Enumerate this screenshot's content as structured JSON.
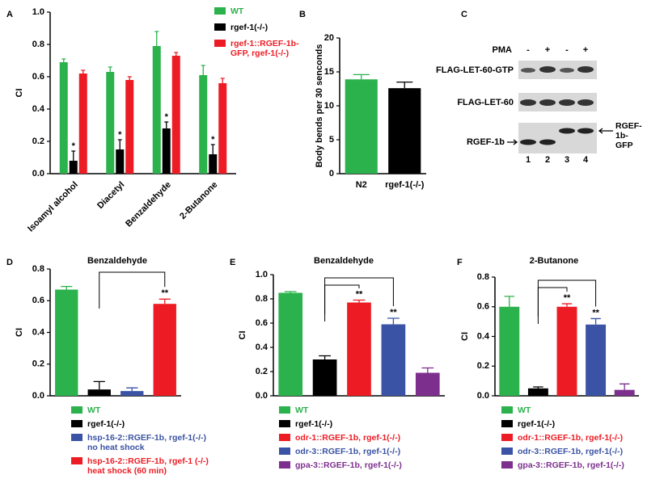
{
  "chart_data": [
    {
      "type": "bar",
      "label": "A",
      "ylabel": "CI",
      "categories": [
        "Isoamyl alcohol",
        "Diacetyl",
        "Benzaldehyde",
        "2-Butanone"
      ],
      "series": [
        {
          "name": "WT",
          "color": "#2bb24c",
          "values": [
            0.69,
            0.63,
            0.79,
            0.61
          ],
          "errors": [
            0.02,
            0.03,
            0.09,
            0.06
          ]
        },
        {
          "name": "rgef-1(-/-)",
          "color": "#000000",
          "values": [
            0.08,
            0.15,
            0.28,
            0.12
          ],
          "errors": [
            0.06,
            0.06,
            0.04,
            0.06
          ]
        },
        {
          "name": "rgef-1::RGEF-1b-\nGFP, rgef-1(-/-)",
          "color": "#ed1c24",
          "values": [
            0.62,
            0.58,
            0.73,
            0.56
          ],
          "errors": [
            0.02,
            0.02,
            0.02,
            0.03
          ]
        }
      ],
      "asterisks": [
        "*",
        "*",
        "*",
        "*"
      ],
      "ylim": [
        0,
        1
      ],
      "yticks": [
        {
          "value": 0,
          "label": "0.0"
        },
        0.2,
        0.4,
        0.6,
        0.8,
        {
          "value": 1,
          "label": "1.0"
        }
      ]
    },
    {
      "type": "bar",
      "label": "B",
      "ylabel": "Body bends per 30 senconds",
      "categories": [
        "N2",
        "rgef-1(-/-)"
      ],
      "values": [
        13.9,
        12.6
      ],
      "errors": [
        0.7,
        0.9
      ],
      "colors": [
        "#2bb24c",
        "#000000"
      ],
      "ylim": [
        0,
        20
      ],
      "yticks": [
        0,
        5,
        10,
        15,
        20
      ]
    },
    {
      "type": "bar",
      "label": "D",
      "title": "Benzaldehyde",
      "ylabel": "CI",
      "categories": [
        null,
        null,
        null,
        null
      ],
      "series": [
        {
          "name": "WT",
          "color": "#2bb24c",
          "values": [
            0.67,
            null,
            null,
            null
          ],
          "errors": [
            0.02,
            null,
            null,
            null
          ]
        },
        {
          "name": "rgef-1(-/-)",
          "color": "#000000",
          "values": [
            null,
            0.04,
            null,
            null
          ],
          "errors": [
            null,
            0.05,
            null,
            null
          ]
        },
        {
          "name": "hsp-16-2::RGEF-1b, rgef-1(-/-)\nno heat shock",
          "color": "#3a53a4",
          "values": [
            null,
            null,
            0.03,
            null
          ],
          "errors": [
            null,
            null,
            0.02,
            null
          ]
        },
        {
          "name": "hsp-16-2::RGEF-1b, rgef-1 (-/-)\nheat shock (60 min)",
          "color": "#ed1c24",
          "values": [
            null,
            null,
            null,
            0.58
          ],
          "errors": [
            null,
            null,
            null,
            0.03
          ]
        }
      ],
      "significance": [
        {
          "from": 1,
          "to": 3,
          "label": "**"
        }
      ],
      "ylim": [
        0,
        0.8
      ],
      "yticks": [
        {
          "value": 0,
          "label": "0.0"
        },
        0.2,
        0.4,
        0.6,
        0.8
      ]
    },
    {
      "type": "bar",
      "label": "E",
      "title": "Benzaldehyde",
      "ylabel": "CI",
      "categories": [
        null,
        null,
        null,
        null,
        null
      ],
      "series": [
        {
          "name": "WT",
          "color": "#2bb24c",
          "values": [
            0.85,
            null,
            null,
            null,
            null
          ],
          "errors": [
            0.01,
            null,
            null,
            null,
            null
          ]
        },
        {
          "name": "rgef-1(-/-)",
          "color": "#000000",
          "values": [
            null,
            0.3,
            null,
            null,
            null
          ],
          "errors": [
            null,
            0.03,
            null,
            null,
            null
          ]
        },
        {
          "name": "odr-1::RGEF-1b, rgef-1(-/-)",
          "color": "#ed1c24",
          "values": [
            null,
            null,
            0.77,
            null,
            null
          ],
          "errors": [
            null,
            null,
            0.02,
            null,
            null
          ]
        },
        {
          "name": "odr-3::RGEF-1b, rgef-1(-/-)",
          "color": "#3a53a4",
          "values": [
            null,
            null,
            null,
            0.59,
            null
          ],
          "errors": [
            null,
            null,
            null,
            0.05,
            null
          ]
        },
        {
          "name": "gpa-3::RGEF-1b, rgef-1(-/-)",
          "color": "#7d2f8e",
          "values": [
            null,
            null,
            null,
            null,
            0.19
          ],
          "errors": [
            null,
            null,
            null,
            null,
            0.04
          ]
        }
      ],
      "significance": [
        {
          "from": 1,
          "to": 2,
          "label": "**"
        },
        {
          "from": 1,
          "to": 3,
          "label": "**"
        }
      ],
      "ylim": [
        0,
        1
      ],
      "yticks": [
        {
          "value": 0,
          "label": "0.0"
        },
        0.2,
        0.4,
        0.6,
        0.8,
        {
          "value": 1,
          "label": "1.0"
        }
      ]
    },
    {
      "type": "bar",
      "label": "F",
      "title": "2-Butanone",
      "ylabel": "CI",
      "categories": [
        null,
        null,
        null,
        null,
        null
      ],
      "series": [
        {
          "name": "WT",
          "color": "#2bb24c",
          "values": [
            0.6,
            null,
            null,
            null,
            null
          ],
          "errors": [
            0.07,
            null,
            null,
            null,
            null
          ]
        },
        {
          "name": "rgef-1(-/-)",
          "color": "#000000",
          "values": [
            null,
            0.05,
            null,
            null,
            null
          ],
          "errors": [
            null,
            0.01,
            null,
            null,
            null
          ]
        },
        {
          "name": "odr-1::RGEF-1b, rgef-1(-/-)",
          "color": "#ed1c24",
          "values": [
            null,
            null,
            0.6,
            null,
            null
          ],
          "errors": [
            null,
            null,
            0.02,
            null,
            null
          ]
        },
        {
          "name": "odr-3::RGEF-1b, rgef-1(-/-)",
          "color": "#3a53a4",
          "values": [
            null,
            null,
            null,
            0.48,
            null
          ],
          "errors": [
            null,
            null,
            null,
            0.04,
            null
          ]
        },
        {
          "name": "gpa-3::RGEF-1b, rgef-1(-/-)",
          "color": "#7d2f8e",
          "values": [
            null,
            null,
            null,
            null,
            0.04
          ],
          "errors": [
            null,
            null,
            null,
            null,
            0.04
          ]
        }
      ],
      "significance": [
        {
          "from": 1,
          "to": 2,
          "label": "**"
        },
        {
          "from": 1,
          "to": 3,
          "label": "**"
        }
      ],
      "ylim": [
        0,
        0.8
      ],
      "yticks": [
        {
          "value": 0,
          "label": "0.0"
        },
        0.2,
        0.4,
        0.6,
        0.8
      ]
    }
  ],
  "blot": {
    "label": "C",
    "treatment": "PMA",
    "signs": [
      "-",
      "+",
      "-",
      "+"
    ],
    "rows": [
      "FLAG-LET-60-GTP",
      "FLAG-LET-60"
    ],
    "left_band": "RGEF-1b",
    "right_band": "RGEF-1b-\nGFP",
    "lanes": [
      1,
      2,
      3,
      4
    ]
  }
}
